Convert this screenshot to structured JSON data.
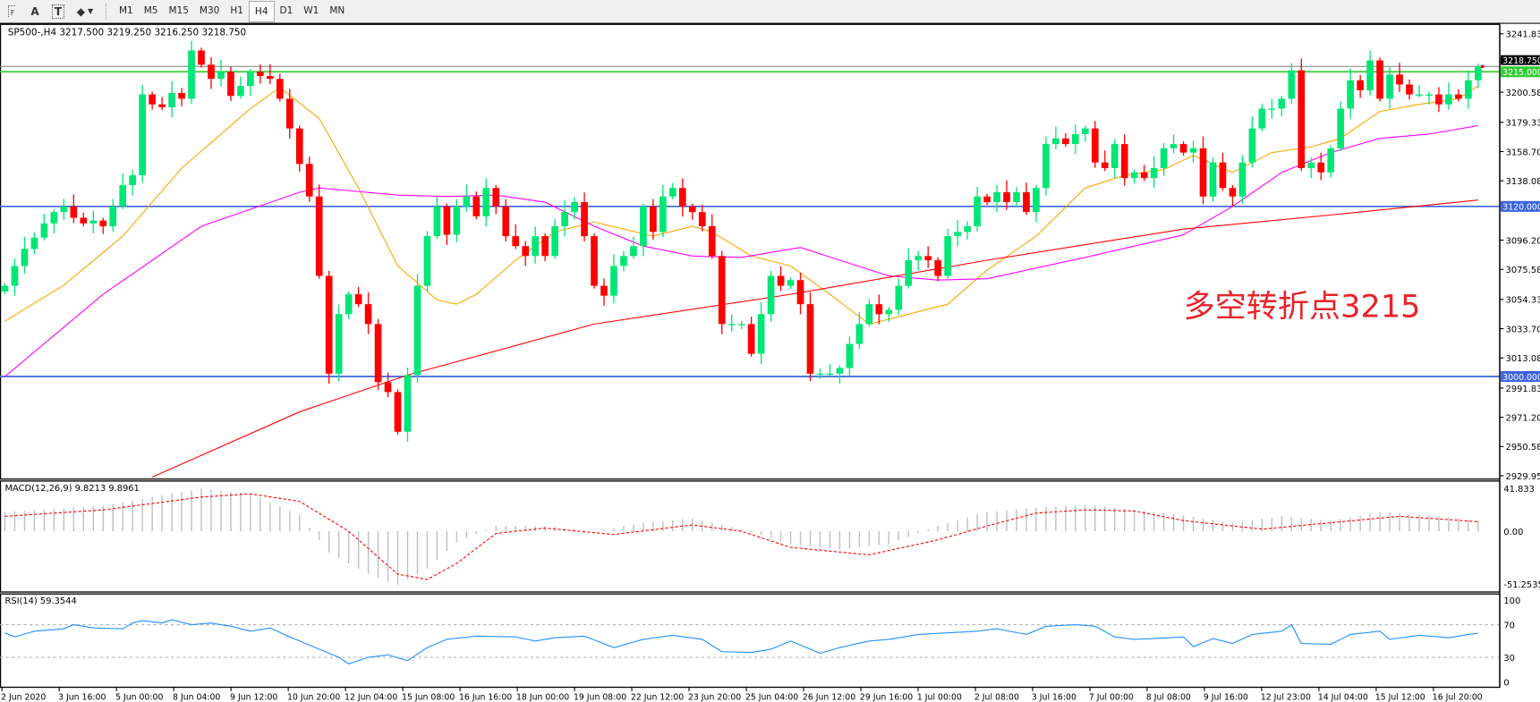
{
  "toolbar": {
    "icons": [
      "fibonacci-fan-icon",
      "text-icon",
      "text-label-icon",
      "shapes-icon"
    ],
    "icon_glyphs": {
      "text": "A",
      "label": "T"
    },
    "timeframes": [
      "M1",
      "M5",
      "M15",
      "M30",
      "H1",
      "H4",
      "D1",
      "W1",
      "MN"
    ],
    "active_timeframe": "H4"
  },
  "chart": {
    "header": "SP500-,H4  3217.500 3219.250 3216.250 3218.750",
    "annotation": "多空转折点3215",
    "colors": {
      "bull": "#00e676",
      "bear": "#ff0000",
      "ma_fast": "#ffa500",
      "ma_mid": "#ff00ff",
      "ma_slow": "#ff0000",
      "support": "#3c64dc",
      "pivot": "#32cd32",
      "rsi": "#1e90ff",
      "macd_hist": "#c0c0c0",
      "macd_signal": "#ff0000"
    },
    "price_axis": [
      "3241.830",
      "3200.580",
      "3179.330",
      "3158.705",
      "3138.080",
      "3096.205",
      "3075.580",
      "3054.330",
      "3033.705",
      "3013.080",
      "2991.830",
      "2971.205",
      "2950.580",
      "2929.955"
    ],
    "levels": [
      {
        "price": 3215,
        "label": "3215.000",
        "kind": "pivot"
      },
      {
        "price": 3120,
        "label": "3120.000",
        "kind": "support"
      },
      {
        "price": 3000,
        "label": "3000.000",
        "kind": "support"
      }
    ],
    "current_price": {
      "price": 3218.75,
      "label": "3218.750"
    },
    "time_axis": [
      "2 Jun 2020",
      "3 Jun 16:00",
      "5 Jun 00:00",
      "8 Jun 04:00",
      "9 Jun 12:00",
      "10 Jun 20:00",
      "12 Jun 04:00",
      "15 Jun 08:00",
      "16 Jun 16:00",
      "18 Jun 00:00",
      "19 Jun 08:00",
      "22 Jun 12:00",
      "23 Jun 20:00",
      "25 Jun 04:00",
      "26 Jun 12:00",
      "29 Jun 16:00",
      "1 Jul 00:00",
      "2 Jul 08:00",
      "3 Jul 16:00",
      "7 Jul 00:00",
      "8 Jul 08:00",
      "9 Jul 16:00",
      "12 Jul 23:00",
      "14 Jul 04:00",
      "15 Jul 12:00",
      "16 Jul 20:00"
    ]
  },
  "chart_data": {
    "type": "candlestick",
    "symbol": "SP500-",
    "timeframe": "H4",
    "ylim": [
      2929.955,
      3241.83
    ],
    "close": [
      3064,
      3078,
      3090,
      3098,
      3108,
      3116,
      3120,
      3112,
      3108,
      3110,
      3106,
      3120,
      3135,
      3142,
      3199,
      3192,
      3190,
      3200,
      3196,
      3230,
      3220,
      3210,
      3215,
      3198,
      3205,
      3215,
      3212,
      3210,
      3196,
      3175,
      3150,
      3127,
      3071,
      3002,
      3044,
      3058,
      3051,
      3037,
      2996,
      2989,
      2961,
      3001,
      3064,
      3099,
      3120,
      3100,
      3120,
      3127,
      3113,
      3133,
      3120,
      3099,
      3092,
      3085,
      3099,
      3085,
      3106,
      3116,
      3123,
      3099,
      3064,
      3057,
      3078,
      3085,
      3092,
      3120,
      3102,
      3127,
      3133,
      3120,
      3116,
      3106,
      3085,
      3037,
      3037,
      3037,
      3016,
      3044,
      3071,
      3064,
      3068,
      3051,
      3002,
      3002,
      3002,
      3006,
      3023,
      3037,
      3051,
      3044,
      3047,
      3064,
      3082,
      3085,
      3082,
      3071,
      3099,
      3102,
      3106,
      3127,
      3123,
      3130,
      3123,
      3130,
      3116,
      3133,
      3164,
      3168,
      3164,
      3171,
      3175,
      3151,
      3147,
      3164,
      3140,
      3144,
      3140,
      3147,
      3161,
      3164,
      3158,
      3161,
      3127,
      3151,
      3133,
      3127,
      3151,
      3175,
      3189,
      3189,
      3196,
      3216,
      3147,
      3151,
      3144,
      3161,
      3189,
      3209,
      3202,
      3223,
      3196,
      3213,
      3206,
      3199,
      3199,
      3199,
      3192,
      3199,
      3196,
      3209,
      3218.75
    ],
    "moving_averages": [
      {
        "color_key": "ma_fast",
        "points": [
          [
            0,
            3039
          ],
          [
            6,
            3064.5
          ],
          [
            12,
            3099
          ],
          [
            18,
            3147
          ],
          [
            25,
            3189
          ],
          [
            28,
            3204
          ],
          [
            32,
            3182
          ],
          [
            36,
            3133
          ],
          [
            40,
            3078
          ],
          [
            44,
            3054
          ],
          [
            46,
            3051
          ],
          [
            48,
            3058
          ],
          [
            52,
            3082
          ],
          [
            56,
            3102
          ],
          [
            60,
            3109
          ],
          [
            66,
            3099
          ],
          [
            70,
            3106
          ],
          [
            72,
            3102
          ],
          [
            76,
            3085
          ],
          [
            80,
            3078
          ],
          [
            84,
            3058
          ],
          [
            88,
            3037
          ],
          [
            92,
            3044
          ],
          [
            96,
            3051
          ],
          [
            100,
            3075
          ],
          [
            105,
            3099
          ],
          [
            110,
            3133
          ],
          [
            114,
            3142
          ],
          [
            118,
            3146
          ],
          [
            121,
            3156
          ],
          [
            125,
            3144
          ],
          [
            129,
            3158
          ],
          [
            133,
            3162
          ],
          [
            136,
            3168
          ],
          [
            140,
            3187
          ],
          [
            144,
            3192
          ],
          [
            148,
            3196
          ],
          [
            150,
            3205
          ]
        ]
      },
      {
        "color_key": "ma_mid",
        "points": [
          [
            0,
            3000
          ],
          [
            10,
            3058
          ],
          [
            20,
            3106
          ],
          [
            30,
            3130
          ],
          [
            32,
            3133
          ],
          [
            40,
            3128
          ],
          [
            45,
            3127
          ],
          [
            50,
            3128
          ],
          [
            55,
            3123
          ],
          [
            60,
            3106
          ],
          [
            65,
            3092
          ],
          [
            70,
            3085
          ],
          [
            75,
            3084
          ],
          [
            81,
            3091
          ],
          [
            85,
            3082
          ],
          [
            90,
            3071
          ],
          [
            95,
            3068
          ],
          [
            100,
            3069
          ],
          [
            110,
            3084
          ],
          [
            120,
            3100
          ],
          [
            125,
            3120
          ],
          [
            130,
            3144
          ],
          [
            135,
            3158
          ],
          [
            140,
            3168
          ],
          [
            145,
            3171
          ],
          [
            150,
            3177
          ]
        ]
      },
      {
        "color_key": "ma_slow",
        "points": [
          [
            15,
            2929
          ],
          [
            30,
            2975
          ],
          [
            41,
            3001
          ],
          [
            60,
            3037
          ],
          [
            80,
            3058
          ],
          [
            100,
            3082
          ],
          [
            120,
            3104
          ],
          [
            135,
            3114
          ],
          [
            150,
            3124.5
          ]
        ]
      }
    ],
    "macd": {
      "label": "MACD(12,26,9) 9.8213 9.8961",
      "axis": [
        "41.833",
        "0.00",
        "-51.2535"
      ],
      "histogram_points": [
        [
          0,
          18
        ],
        [
          10,
          24
        ],
        [
          20,
          40
        ],
        [
          25,
          35
        ],
        [
          30,
          15
        ],
        [
          33,
          -20
        ],
        [
          37,
          -40
        ],
        [
          40,
          -50
        ],
        [
          43,
          -35
        ],
        [
          46,
          -10
        ],
        [
          50,
          5
        ],
        [
          55,
          5
        ],
        [
          60,
          0
        ],
        [
          65,
          8
        ],
        [
          70,
          12
        ],
        [
          75,
          2
        ],
        [
          80,
          -12
        ],
        [
          85,
          -17
        ],
        [
          90,
          -12
        ],
        [
          95,
          5
        ],
        [
          100,
          18
        ],
        [
          105,
          22
        ],
        [
          110,
          25
        ],
        [
          115,
          20
        ],
        [
          120,
          15
        ],
        [
          125,
          8
        ],
        [
          130,
          14
        ],
        [
          135,
          10
        ],
        [
          140,
          18
        ],
        [
          145,
          15
        ],
        [
          150,
          10
        ]
      ],
      "signal_points": [
        [
          0,
          14
        ],
        [
          10,
          20
        ],
        [
          20,
          32
        ],
        [
          25,
          35
        ],
        [
          30,
          28
        ],
        [
          35,
          0
        ],
        [
          40,
          -40
        ],
        [
          43,
          -45
        ],
        [
          46,
          -30
        ],
        [
          50,
          -2
        ],
        [
          55,
          3
        ],
        [
          62,
          -3
        ],
        [
          70,
          6
        ],
        [
          75,
          0
        ],
        [
          80,
          -15
        ],
        [
          88,
          -22
        ],
        [
          95,
          -8
        ],
        [
          100,
          5
        ],
        [
          105,
          17
        ],
        [
          110,
          20
        ],
        [
          115,
          19
        ],
        [
          120,
          10
        ],
        [
          128,
          2
        ],
        [
          135,
          8
        ],
        [
          142,
          14
        ],
        [
          150,
          9
        ]
      ]
    },
    "rsi": {
      "label": "RSI(14) 59.3544",
      "axis": [
        "100",
        "70",
        "30",
        "0"
      ],
      "levels": [
        70,
        30
      ],
      "points": [
        [
          0,
          60
        ],
        [
          1,
          55
        ],
        [
          3,
          62
        ],
        [
          6,
          65
        ],
        [
          7,
          70
        ],
        [
          9,
          66
        ],
        [
          12,
          65
        ],
        [
          13,
          72
        ],
        [
          14,
          75
        ],
        [
          16,
          72
        ],
        [
          17,
          76
        ],
        [
          19,
          70
        ],
        [
          21,
          72
        ],
        [
          23,
          68
        ],
        [
          25,
          62
        ],
        [
          27,
          66
        ],
        [
          29,
          55
        ],
        [
          31,
          45
        ],
        [
          34,
          30
        ],
        [
          35,
          22
        ],
        [
          37,
          30
        ],
        [
          39,
          33
        ],
        [
          41,
          26
        ],
        [
          43,
          42
        ],
        [
          45,
          52
        ],
        [
          48,
          56
        ],
        [
          52,
          55
        ],
        [
          54,
          50
        ],
        [
          56,
          54
        ],
        [
          59,
          56
        ],
        [
          62,
          42
        ],
        [
          65,
          52
        ],
        [
          68,
          57
        ],
        [
          71,
          52
        ],
        [
          73,
          37
        ],
        [
          76,
          36
        ],
        [
          78,
          40
        ],
        [
          80,
          50
        ],
        [
          83,
          35
        ],
        [
          85,
          42
        ],
        [
          88,
          50
        ],
        [
          90,
          52
        ],
        [
          93,
          58
        ],
        [
          96,
          60
        ],
        [
          99,
          62
        ],
        [
          101,
          65
        ],
        [
          104,
          58
        ],
        [
          106,
          68
        ],
        [
          109,
          70
        ],
        [
          111,
          68
        ],
        [
          113,
          55
        ],
        [
          115,
          52
        ],
        [
          117,
          53
        ],
        [
          120,
          55
        ],
        [
          121,
          43
        ],
        [
          123,
          53
        ],
        [
          125,
          47
        ],
        [
          127,
          58
        ],
        [
          130,
          62
        ],
        [
          131,
          70
        ],
        [
          132,
          47
        ],
        [
          135,
          46
        ],
        [
          137,
          58
        ],
        [
          140,
          62
        ],
        [
          141,
          52
        ],
        [
          144,
          57
        ],
        [
          147,
          54
        ],
        [
          149,
          58
        ],
        [
          150,
          59.35
        ]
      ]
    }
  }
}
